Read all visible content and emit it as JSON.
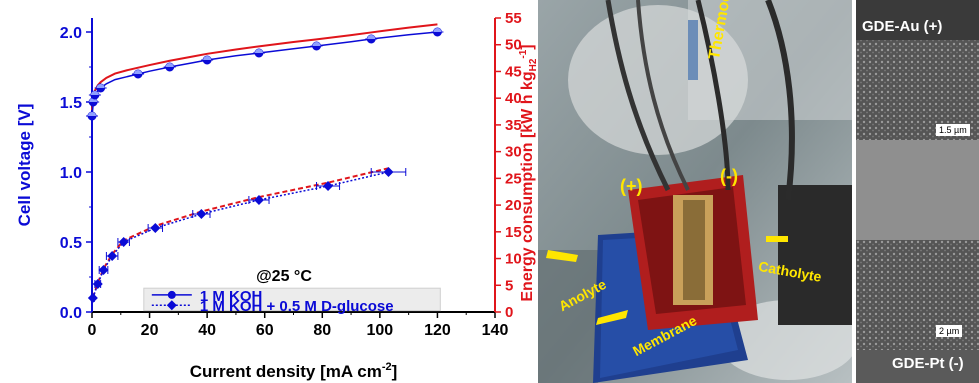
{
  "chart_data": {
    "type": "scatter",
    "title": "",
    "annotation": "@25 °C",
    "xlabel": "Current density [mA cm",
    "xlabel_sup": "-2",
    "xlabel_end": "]",
    "ylabel_left": "Cell voltage [V]",
    "ylabel_right": "Energy consumption [kW h kg",
    "ylabel_right_sub": "H2",
    "ylabel_right_sup": "-1",
    "ylabel_right_end": "]",
    "xlim": [
      0,
      140
    ],
    "ylim_left": [
      0,
      2.1
    ],
    "ylim_right": [
      0,
      55
    ],
    "x_ticks": [
      "0",
      "20",
      "40",
      "60",
      "80",
      "100",
      "120",
      "140"
    ],
    "y_left_ticks": [
      "0.0",
      "0.5",
      "1.0",
      "1.5",
      "2.0"
    ],
    "y_right_ticks": [
      "0",
      "5",
      "10",
      "15",
      "20",
      "25",
      "30",
      "35",
      "40",
      "45",
      "50",
      "55"
    ],
    "legend_position": "bottom",
    "colors": {
      "blue": "#0b0bd6",
      "red": "#e0151b",
      "legend_bg": "#ececec"
    },
    "series": [
      {
        "name": "1 M KOH",
        "marker": "circle-half",
        "line": "solid",
        "x": [
          0,
          0.4,
          1,
          3,
          16,
          27,
          40,
          58,
          78,
          97,
          120
        ],
        "y": [
          1.4,
          1.5,
          1.55,
          1.6,
          1.7,
          1.75,
          1.8,
          1.85,
          1.9,
          1.95,
          2.0
        ],
        "fit_x": [
          0,
          0.5,
          1,
          2,
          3,
          5,
          8,
          12,
          16,
          20,
          27,
          35,
          40,
          50,
          58,
          70,
          78,
          90,
          97,
          110,
          120
        ],
        "fit_y": [
          1.4,
          1.5,
          1.54,
          1.58,
          1.6,
          1.63,
          1.66,
          1.68,
          1.7,
          1.72,
          1.75,
          1.78,
          1.8,
          1.83,
          1.85,
          1.88,
          1.9,
          1.93,
          1.95,
          1.98,
          2.0
        ],
        "energy_fit_x": [
          0,
          0.5,
          1,
          2,
          3,
          5,
          8,
          12,
          16,
          20,
          27,
          35,
          40,
          50,
          58,
          70,
          78,
          90,
          97,
          110,
          120
        ],
        "energy_fit_y": [
          37.8,
          40.3,
          41.4,
          42.4,
          43.0,
          43.8,
          44.6,
          45.2,
          45.7,
          46.2,
          47.0,
          47.8,
          48.3,
          49.1,
          49.7,
          50.5,
          51.0,
          51.8,
          52.3,
          53.2,
          53.8
        ]
      },
      {
        "name": "1 M KOH + 0.5 M D-glucose",
        "marker": "diamond",
        "line": "dotted",
        "x": [
          0.3,
          2,
          4,
          7,
          11,
          22,
          38,
          58,
          82,
          103
        ],
        "y": [
          0.1,
          0.2,
          0.3,
          0.4,
          0.5,
          0.6,
          0.7,
          0.8,
          0.9,
          1.0
        ],
        "xerr": [
          0.5,
          1,
          1.5,
          2,
          2,
          2.5,
          3,
          3.5,
          4,
          6
        ],
        "energy_fit_x": [
          0.3,
          2,
          4,
          7,
          11,
          22,
          38,
          58,
          82,
          103
        ],
        "energy_fit_y": [
          2.7,
          5.4,
          8.1,
          10.8,
          13.4,
          16.1,
          18.8,
          21.5,
          24.2,
          26.9
        ]
      }
    ]
  },
  "photo": {
    "labels": {
      "thermocouple": "Thermocouple",
      "plus": "(+)",
      "minus": "(-)",
      "anolyte": "Anolyte",
      "catholyte": "Catholyte",
      "membrane": "Membrane"
    }
  },
  "sem": {
    "top_label": "GDE-Au (+)",
    "bottom_label": "GDE-Pt (-)",
    "scale_top": "1.5 µm",
    "scale_bottom": "2 µm"
  }
}
